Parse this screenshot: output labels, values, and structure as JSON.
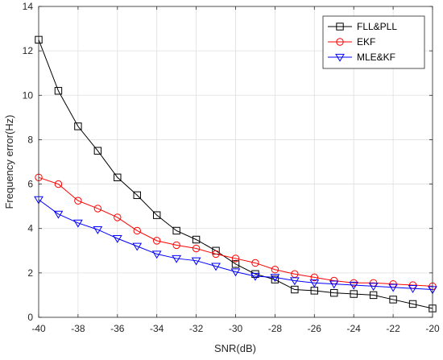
{
  "chart_data": {
    "type": "line",
    "xlabel": "SNR(dB)",
    "ylabel": "Frequency error(Hz)",
    "xlim": [
      -40,
      -20
    ],
    "ylim": [
      0,
      14
    ],
    "xticks": [
      -40,
      -38,
      -36,
      -34,
      -32,
      -30,
      -28,
      -26,
      -24,
      -22,
      -20
    ],
    "yticks": [
      0,
      2,
      4,
      6,
      8,
      10,
      12,
      14
    ],
    "grid": true,
    "legend_position": "top-right",
    "x": [
      -40,
      -39,
      -38,
      -37,
      -36,
      -35,
      -34,
      -33,
      -32,
      -31,
      -30,
      -29,
      -28,
      -27,
      -26,
      -25,
      -24,
      -23,
      -22,
      -21,
      -20
    ],
    "series": [
      {
        "name": "FLL&PLL",
        "color": "#000000",
        "marker": "square",
        "values": [
          12.5,
          10.2,
          8.6,
          7.5,
          6.3,
          5.5,
          4.6,
          3.9,
          3.5,
          3.0,
          2.4,
          1.95,
          1.7,
          1.25,
          1.2,
          1.1,
          1.05,
          1.0,
          0.8,
          0.6,
          0.4
        ]
      },
      {
        "name": "EKF",
        "color": "#ff0000",
        "marker": "circle",
        "values": [
          6.3,
          6.0,
          5.25,
          4.9,
          4.5,
          3.9,
          3.45,
          3.25,
          3.1,
          2.85,
          2.65,
          2.45,
          2.15,
          1.95,
          1.8,
          1.65,
          1.55,
          1.55,
          1.5,
          1.45,
          1.4
        ]
      },
      {
        "name": "MLE&KF",
        "color": "#0000ff",
        "marker": "triangle-down",
        "values": [
          5.3,
          4.65,
          4.25,
          3.95,
          3.55,
          3.2,
          2.85,
          2.65,
          2.55,
          2.3,
          2.05,
          1.85,
          1.8,
          1.65,
          1.55,
          1.5,
          1.45,
          1.4,
          1.35,
          1.3,
          1.25
        ]
      }
    ]
  }
}
